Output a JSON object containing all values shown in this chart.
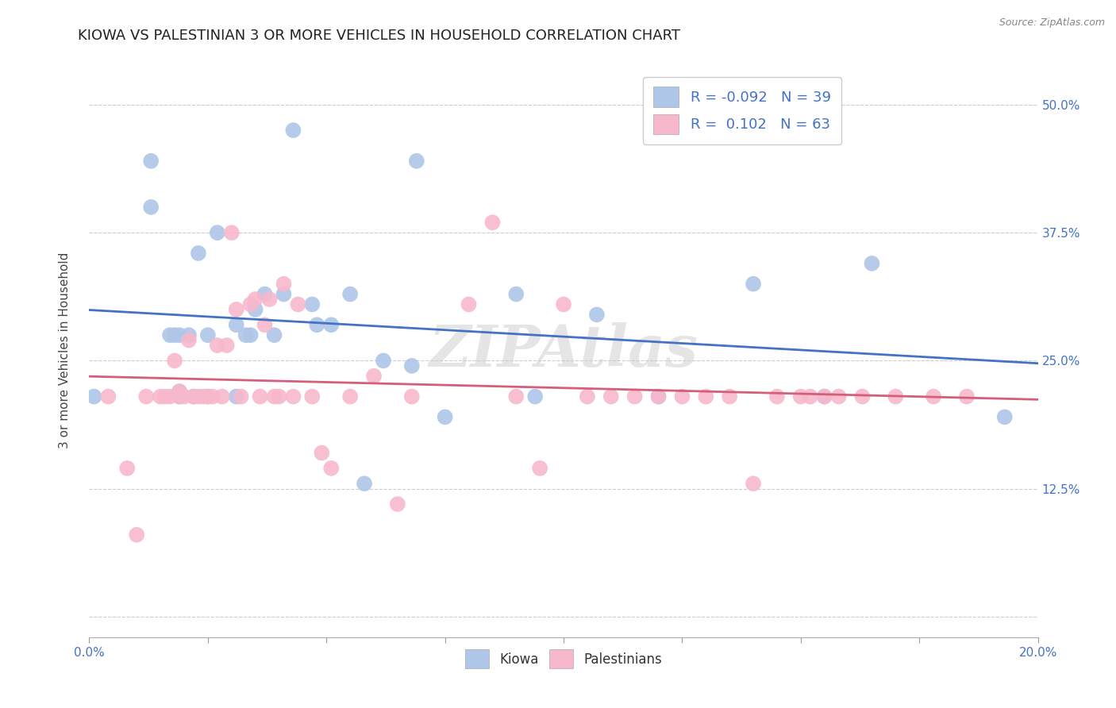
{
  "title": "KIOWA VS PALESTINIAN 3 OR MORE VEHICLES IN HOUSEHOLD CORRELATION CHART",
  "source": "Source: ZipAtlas.com",
  "ylabel": "3 or more Vehicles in Household",
  "yticks": [
    0.0,
    0.125,
    0.25,
    0.375,
    0.5
  ],
  "ytick_labels": [
    "",
    "12.5%",
    "25.0%",
    "37.5%",
    "50.0%"
  ],
  "xlim": [
    0.0,
    0.2
  ],
  "ylim": [
    -0.02,
    0.54
  ],
  "kiowa_R": -0.092,
  "kiowa_N": 39,
  "palestinian_R": 0.102,
  "palestinian_N": 63,
  "kiowa_color": "#aec6e8",
  "kiowa_line_color": "#4472c4",
  "palestinian_color": "#f7b8cb",
  "palestinian_line_color": "#d45f7a",
  "watermark": "ZIPAtlas",
  "kiowa_x": [
    0.001,
    0.013,
    0.013,
    0.017,
    0.018,
    0.019,
    0.019,
    0.019,
    0.021,
    0.022,
    0.023,
    0.025,
    0.027,
    0.031,
    0.031,
    0.033,
    0.034,
    0.035,
    0.037,
    0.039,
    0.041,
    0.043,
    0.047,
    0.048,
    0.051,
    0.055,
    0.058,
    0.062,
    0.068,
    0.069,
    0.075,
    0.09,
    0.094,
    0.107,
    0.12,
    0.14,
    0.155,
    0.165,
    0.193
  ],
  "kiowa_y": [
    0.215,
    0.445,
    0.4,
    0.275,
    0.275,
    0.275,
    0.22,
    0.215,
    0.275,
    0.215,
    0.355,
    0.275,
    0.375,
    0.285,
    0.215,
    0.275,
    0.275,
    0.3,
    0.315,
    0.275,
    0.315,
    0.475,
    0.305,
    0.285,
    0.285,
    0.315,
    0.13,
    0.25,
    0.245,
    0.445,
    0.195,
    0.315,
    0.215,
    0.295,
    0.215,
    0.325,
    0.215,
    0.345,
    0.195
  ],
  "palestinian_x": [
    0.004,
    0.008,
    0.01,
    0.012,
    0.015,
    0.016,
    0.017,
    0.018,
    0.019,
    0.019,
    0.02,
    0.021,
    0.022,
    0.023,
    0.024,
    0.025,
    0.025,
    0.026,
    0.027,
    0.028,
    0.029,
    0.03,
    0.031,
    0.032,
    0.034,
    0.035,
    0.036,
    0.037,
    0.038,
    0.039,
    0.04,
    0.041,
    0.043,
    0.044,
    0.047,
    0.049,
    0.051,
    0.055,
    0.06,
    0.065,
    0.068,
    0.08,
    0.085,
    0.09,
    0.095,
    0.1,
    0.105,
    0.11,
    0.115,
    0.12,
    0.125,
    0.13,
    0.135,
    0.14,
    0.145,
    0.15,
    0.152,
    0.155,
    0.158,
    0.163,
    0.17,
    0.178,
    0.185
  ],
  "palestinian_y": [
    0.215,
    0.145,
    0.08,
    0.215,
    0.215,
    0.215,
    0.215,
    0.25,
    0.215,
    0.22,
    0.215,
    0.27,
    0.215,
    0.215,
    0.215,
    0.215,
    0.215,
    0.215,
    0.265,
    0.215,
    0.265,
    0.375,
    0.3,
    0.215,
    0.305,
    0.31,
    0.215,
    0.285,
    0.31,
    0.215,
    0.215,
    0.325,
    0.215,
    0.305,
    0.215,
    0.16,
    0.145,
    0.215,
    0.235,
    0.11,
    0.215,
    0.305,
    0.385,
    0.215,
    0.145,
    0.305,
    0.215,
    0.215,
    0.215,
    0.215,
    0.215,
    0.215,
    0.215,
    0.13,
    0.215,
    0.215,
    0.215,
    0.215,
    0.215,
    0.215,
    0.215,
    0.215,
    0.215
  ],
  "background_color": "#ffffff",
  "grid_color": "#cccccc",
  "title_fontsize": 13,
  "axis_fontsize": 11,
  "tick_fontsize": 11,
  "legend_fontsize": 13
}
